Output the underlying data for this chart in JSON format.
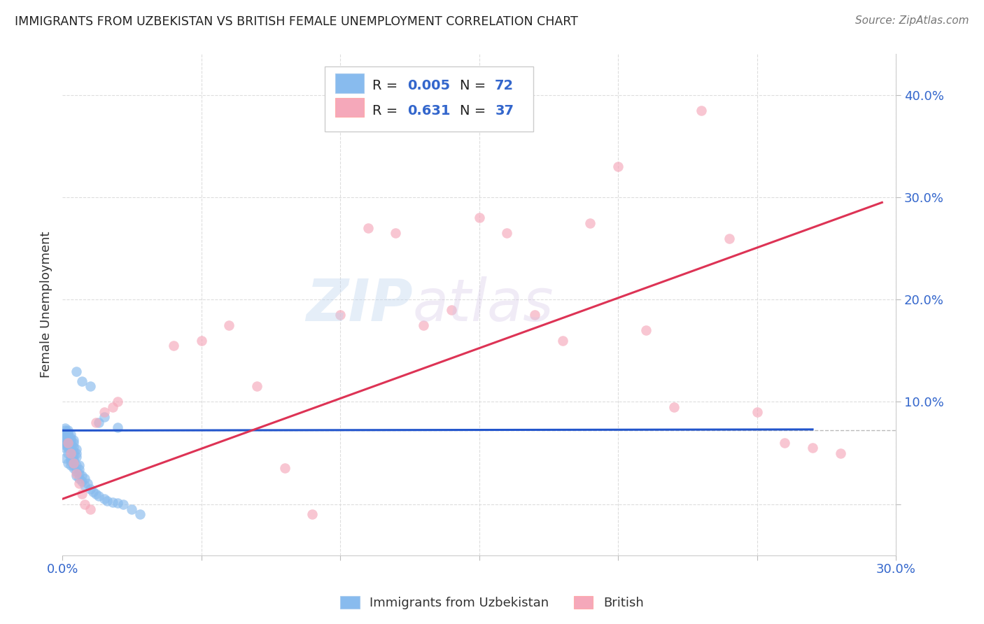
{
  "title": "IMMIGRANTS FROM UZBEKISTAN VS BRITISH FEMALE UNEMPLOYMENT CORRELATION CHART",
  "source": "Source: ZipAtlas.com",
  "ylabel": "Female Unemployment",
  "xlim": [
    0.0,
    0.3
  ],
  "ylim": [
    -0.05,
    0.44
  ],
  "blue_color": "#88bbee",
  "pink_color": "#f5a8ba",
  "blue_line_color": "#2255cc",
  "pink_line_color": "#dd3355",
  "title_color": "#222222",
  "source_color": "#777777",
  "axis_label_color": "#333333",
  "tick_color_blue": "#3366cc",
  "watermark_color": "#c5d8f0",
  "grid_color": "#dddddd",
  "background_color": "#ffffff",
  "mean_line_y": 0.072,
  "blue_line_x": [
    0.0,
    0.27
  ],
  "blue_line_y": [
    0.072,
    0.073
  ],
  "pink_line_x": [
    0.0,
    0.295
  ],
  "pink_line_y": [
    0.005,
    0.295
  ],
  "blue_scatter_x": [
    0.001,
    0.001,
    0.001,
    0.001,
    0.001,
    0.001,
    0.001,
    0.001,
    0.001,
    0.001,
    0.002,
    0.002,
    0.002,
    0.002,
    0.002,
    0.002,
    0.002,
    0.002,
    0.002,
    0.002,
    0.003,
    0.003,
    0.003,
    0.003,
    0.003,
    0.003,
    0.003,
    0.003,
    0.003,
    0.003,
    0.004,
    0.004,
    0.004,
    0.004,
    0.004,
    0.004,
    0.004,
    0.004,
    0.004,
    0.004,
    0.005,
    0.005,
    0.005,
    0.005,
    0.005,
    0.005,
    0.006,
    0.006,
    0.006,
    0.006,
    0.007,
    0.007,
    0.008,
    0.008,
    0.009,
    0.01,
    0.011,
    0.012,
    0.013,
    0.015,
    0.016,
    0.018,
    0.02,
    0.022,
    0.025,
    0.028,
    0.005,
    0.007,
    0.01,
    0.013,
    0.015,
    0.02
  ],
  "blue_scatter_y": [
    0.055,
    0.058,
    0.06,
    0.062,
    0.065,
    0.068,
    0.07,
    0.072,
    0.074,
    0.045,
    0.05,
    0.055,
    0.058,
    0.06,
    0.063,
    0.066,
    0.068,
    0.07,
    0.072,
    0.04,
    0.045,
    0.05,
    0.055,
    0.058,
    0.06,
    0.063,
    0.065,
    0.068,
    0.042,
    0.038,
    0.044,
    0.048,
    0.052,
    0.056,
    0.06,
    0.063,
    0.04,
    0.035,
    0.038,
    0.042,
    0.046,
    0.05,
    0.054,
    0.038,
    0.032,
    0.028,
    0.034,
    0.038,
    0.03,
    0.025,
    0.028,
    0.022,
    0.025,
    0.018,
    0.02,
    0.015,
    0.012,
    0.01,
    0.008,
    0.005,
    0.003,
    0.002,
    0.001,
    0.0,
    -0.005,
    -0.01,
    0.13,
    0.12,
    0.115,
    0.08,
    0.085,
    0.075
  ],
  "pink_scatter_x": [
    0.002,
    0.003,
    0.004,
    0.005,
    0.006,
    0.007,
    0.008,
    0.01,
    0.012,
    0.015,
    0.018,
    0.02,
    0.04,
    0.05,
    0.06,
    0.07,
    0.08,
    0.09,
    0.1,
    0.11,
    0.12,
    0.13,
    0.14,
    0.15,
    0.16,
    0.17,
    0.18,
    0.19,
    0.2,
    0.21,
    0.22,
    0.23,
    0.24,
    0.25,
    0.26,
    0.27,
    0.28
  ],
  "pink_scatter_y": [
    0.06,
    0.05,
    0.04,
    0.03,
    0.02,
    0.01,
    0.0,
    -0.005,
    0.08,
    0.09,
    0.095,
    0.1,
    0.155,
    0.16,
    0.175,
    0.115,
    0.035,
    -0.01,
    0.185,
    0.27,
    0.265,
    0.175,
    0.19,
    0.28,
    0.265,
    0.185,
    0.16,
    0.275,
    0.33,
    0.17,
    0.095,
    0.385,
    0.26,
    0.09,
    0.06,
    0.055,
    0.05
  ]
}
